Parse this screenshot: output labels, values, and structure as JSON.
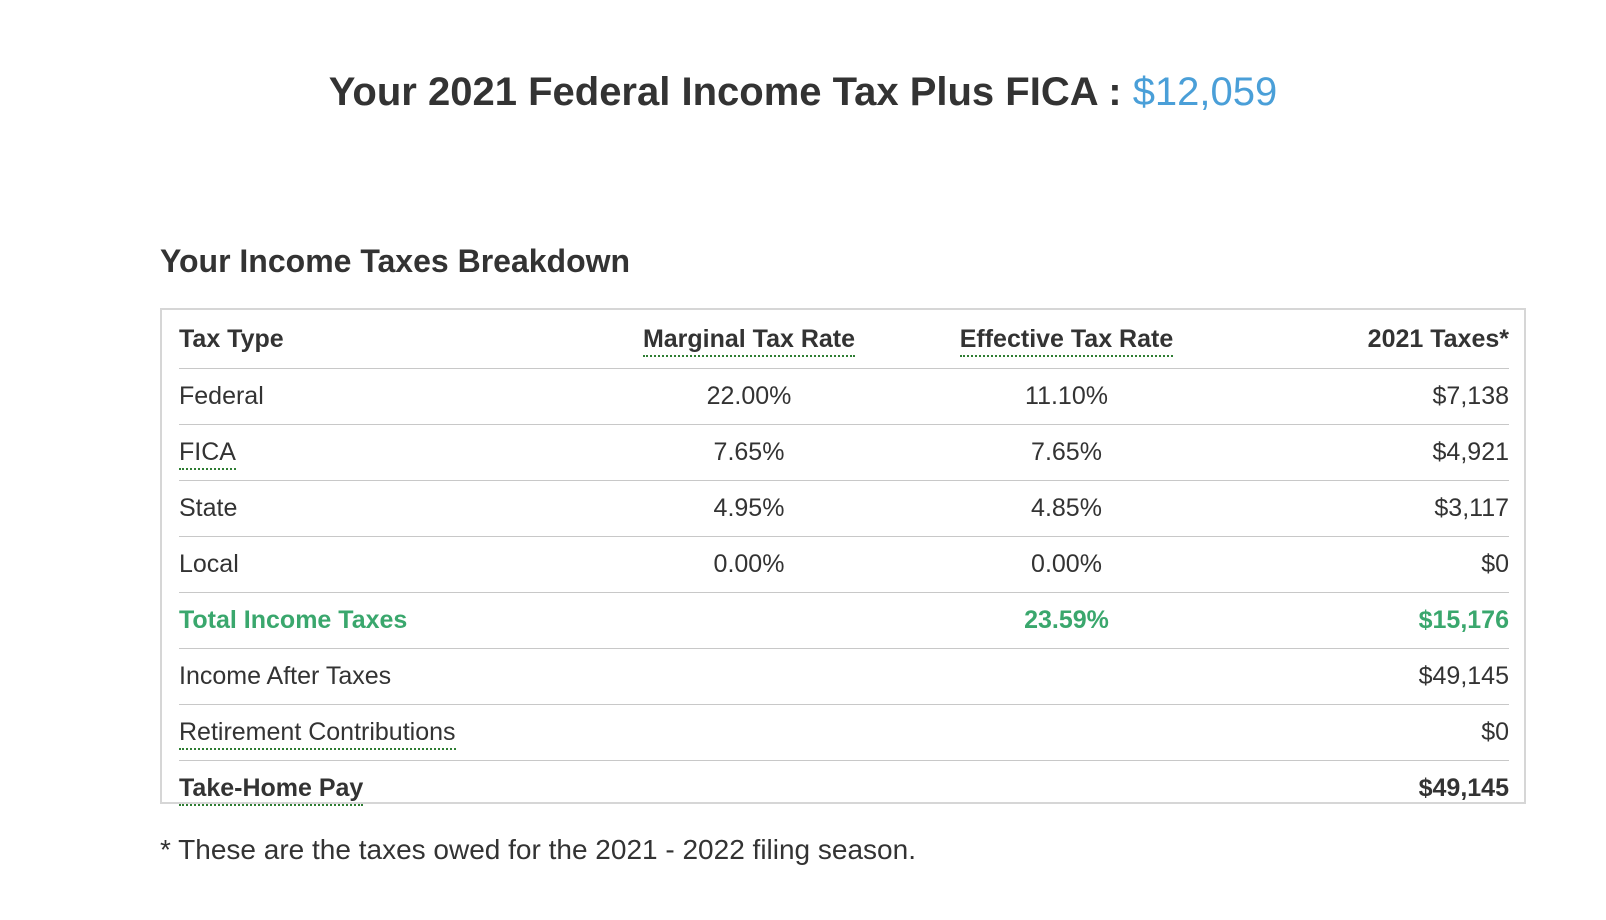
{
  "headline": {
    "text": "Your 2021 Federal Income Tax Plus FICA :",
    "amount": "$12,059"
  },
  "section_title": "Your Income Taxes Breakdown",
  "table": {
    "headers": {
      "tax_type": "Tax Type",
      "marginal": "Marginal Tax Rate",
      "effective": "Effective Tax Rate",
      "taxes": "2021 Taxes*"
    },
    "rows": [
      {
        "label": "Federal",
        "marginal": "22.00%",
        "effective": "11.10%",
        "taxes": "$7,138"
      },
      {
        "label": "FICA",
        "marginal": "7.65%",
        "effective": "7.65%",
        "taxes": "$4,921"
      },
      {
        "label": "State",
        "marginal": "4.95%",
        "effective": "4.85%",
        "taxes": "$3,117"
      },
      {
        "label": "Local",
        "marginal": "0.00%",
        "effective": "0.00%",
        "taxes": "$0"
      },
      {
        "label": "Total Income Taxes",
        "marginal": "",
        "effective": "23.59%",
        "taxes": "$15,176"
      },
      {
        "label": "Income After Taxes",
        "marginal": "",
        "effective": "",
        "taxes": "$49,145"
      },
      {
        "label": "Retirement Contributions",
        "marginal": "",
        "effective": "",
        "taxes": "$0"
      },
      {
        "label": "Take-Home Pay",
        "marginal": "",
        "effective": "",
        "taxes": "$49,145"
      }
    ]
  },
  "footnote": "* These are the taxes owed for the 2021 - 2022 filing season.",
  "colors": {
    "accent_blue": "#4a9fd8",
    "total_green": "#3aa76d",
    "text": "#333333",
    "border": "#d6d6d6"
  }
}
